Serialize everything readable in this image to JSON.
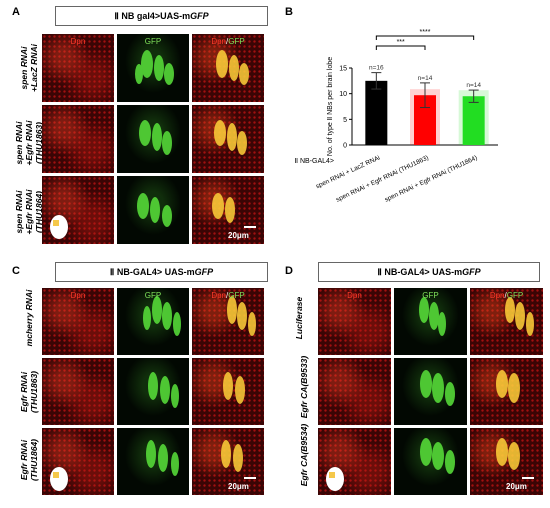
{
  "panels": {
    "A": {
      "letter": "A",
      "header_prefix": "Ⅱ NB gal4>UAS-m",
      "header_italic": "GFP",
      "rows": [
        {
          "line1": "spen RNAi",
          "line2": "+LacZ RNAi",
          "line3": ""
        },
        {
          "line1": "spen RNAi",
          "line2": "+Egfr RNAi",
          "line3": "(THU1863)"
        },
        {
          "line1": "spen RNAi",
          "line2": "+Egfr RNAi",
          "line3": "(THU1864)"
        }
      ],
      "channels": {
        "dpn": "Dpn",
        "gfp": "GFP",
        "merge_a": "Dpn",
        "merge_sep": "/",
        "merge_b": "GFP"
      },
      "scale": "20μm"
    },
    "B": {
      "letter": "B",
      "gal4_label": "Ⅱ NB-GAL4>"
    },
    "C": {
      "letter": "C",
      "header_prefix": "Ⅱ NB-GAL4> UAS-m",
      "header_italic": "GFP",
      "rows": [
        {
          "line1": "mcherry RNAi",
          "line2": "",
          "line3": ""
        },
        {
          "line1": "Egfr RNAi",
          "line2": "(THU1863)",
          "line3": ""
        },
        {
          "line1": "Egfr RNAi",
          "line2": "(THU1864)",
          "line3": ""
        }
      ],
      "channels": {
        "dpn": "Dpn",
        "gfp": "GFP",
        "merge_a": "Dpn",
        "merge_sep": "/",
        "merge_b": "GFP"
      },
      "scale": "20μm"
    },
    "D": {
      "letter": "D",
      "header_prefix": "Ⅱ NB-GAL4> UAS-m",
      "header_italic": "GFP",
      "rows": [
        {
          "line1": "Luciferase",
          "line2": "",
          "line3": ""
        },
        {
          "line1": "Egfr CA(B9533)",
          "line2": "",
          "line3": ""
        },
        {
          "line1": "Egfr CA(B9534)",
          "line2": "",
          "line3": ""
        }
      ],
      "channels": {
        "dpn": "Dpn",
        "gfp": "GFP",
        "merge_a": "Dpn",
        "merge_sep": "/",
        "merge_b": "GFP"
      },
      "scale": "20μm"
    }
  },
  "chart_data": {
    "type": "bar",
    "ylabel": "No. of type Ⅱ NBs per brain lobe",
    "ylim": [
      0,
      15
    ],
    "yticks": [
      0,
      5,
      10,
      15
    ],
    "categories": [
      "spen RNAi + LacZ RNAi",
      "spen RNAi + Egfr RNAi (THU1863)",
      "spen RNAi + Egfr RNAi (THU1864)"
    ],
    "values": [
      12.5,
      9.7,
      9.5
    ],
    "errors": [
      1.6,
      2.4,
      1.2
    ],
    "n_labels": [
      "n=16",
      "n=14",
      "n=14"
    ],
    "colors": [
      "#000000",
      "#ff0000",
      "#22dd22"
    ],
    "significance": [
      {
        "from": 0,
        "to": 1,
        "label": "***"
      },
      {
        "from": 0,
        "to": 2,
        "label": "****"
      }
    ]
  }
}
